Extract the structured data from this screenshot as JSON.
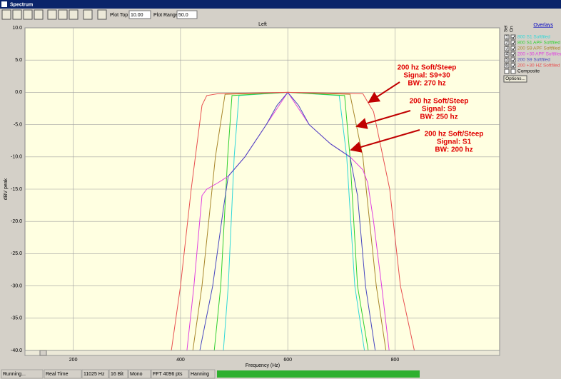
{
  "window_title": "Spectrum",
  "toolbar": {
    "plot_top_label": "Plot Top",
    "plot_top_value": "10.00",
    "plot_range_label": "Plot Range",
    "plot_range_value": "50.0"
  },
  "overlays": {
    "title": "Overlays",
    "sel": "Sel",
    "on": "On",
    "composite": "Composite",
    "options": "Options..."
  },
  "status_bar": [
    "Running...",
    "Real Time",
    "11025 Hz",
    "16 Bit",
    "Mono",
    "FFT 4096 pts",
    "Hanning"
  ],
  "chart_data": {
    "type": "line",
    "title": "Left",
    "x_label": "Frequency (Hz)",
    "y_label": "dBV peak",
    "xlim": [
      110,
      995
    ],
    "xticks": [
      200,
      400,
      600,
      800
    ],
    "ylim": [
      -40,
      10
    ],
    "yticks": [
      {
        "value": 10,
        "label": "10.0"
      },
      {
        "value": 5,
        "label": "5.0"
      },
      {
        "value": 0,
        "label": "0.0"
      },
      {
        "value": -5,
        "label": "-5.0"
      },
      {
        "value": -10,
        "label": "-10.0"
      },
      {
        "value": -15,
        "label": "-15.0"
      },
      {
        "value": -20,
        "label": "-20.0"
      },
      {
        "value": -25,
        "label": "-25.0"
      },
      {
        "value": -30,
        "label": "-30.0"
      },
      {
        "value": -35,
        "label": "-35.0"
      },
      {
        "value": -40,
        "label": "-40.0"
      }
    ],
    "grid": true,
    "series": [
      {
        "id": 1,
        "name": "800 S1 Softfiled",
        "color": "#30d8d8",
        "x": [
          480,
          489,
          500,
          509,
          600,
          696,
          710,
          725,
          743
        ],
        "values": [
          -40,
          -30,
          -10,
          -0.5,
          0,
          -0.5,
          -10,
          -30,
          -40
        ]
      },
      {
        "id": 2,
        "name": "800 S1 APF Softfiled",
        "color": "#30d030",
        "x": [
          463,
          475,
          488,
          496,
          600,
          706,
          716,
          730,
          750
        ],
        "values": [
          -40,
          -30,
          -10,
          -0.5,
          0,
          -0.5,
          -10,
          -30,
          -40
        ]
      },
      {
        "id": 3,
        "name": "200 S9 APF Softfiled",
        "color": "#a8862a",
        "x": [
          423,
          440,
          465,
          483,
          600,
          716,
          740,
          765,
          783
        ],
        "values": [
          -40,
          -30,
          -10,
          -0.3,
          0,
          -0.3,
          -10,
          -30,
          -40
        ]
      },
      {
        "id": 4,
        "name": "200 +30 APF Softfiled",
        "color": "#e040e0",
        "x": [
          412,
          425,
          440,
          449,
          470,
          489,
          520,
          560,
          600,
          640,
          680,
          716,
          740,
          749,
          760,
          775,
          789
        ],
        "values": [
          -40,
          -30,
          -16,
          -15,
          -14,
          -13,
          -10,
          -5,
          0,
          -5,
          -8,
          -10,
          -12,
          -14,
          -20,
          -30,
          -40
        ]
      },
      {
        "id": 5,
        "name": "200 S9 Softfiled",
        "color": "#4848c0",
        "x": [
          436,
          460,
          480,
          489,
          520,
          560,
          580,
          600,
          620,
          640,
          680,
          716,
          730,
          745,
          763
        ],
        "values": [
          -40,
          -30,
          -18,
          -13,
          -10,
          -5,
          -2,
          0,
          -2,
          -5,
          -8,
          -10,
          -16,
          -30,
          -40
        ]
      },
      {
        "id": 6,
        "name": "200 +30 HZ Softfiled",
        "color": "#e85050",
        "x": [
          383,
          400,
          420,
          440,
          449,
          470,
          600,
          740,
          749,
          760,
          790,
          810,
          836
        ],
        "values": [
          -40,
          -30,
          -15,
          -2,
          -0.5,
          -0.2,
          0,
          -0.2,
          -1.5,
          -3,
          -15,
          -30,
          -40
        ]
      }
    ],
    "annotations": [
      [
        "200 hz Soft/Steep",
        "Signal:  S9+30",
        "BW: 270 hz"
      ],
      [
        "200 hz Soft/Steep",
        "Signal:  S9",
        "BW: 250 hz"
      ],
      [
        "200 hz Soft/Steep",
        "Signal:  S1",
        "BW: 200 hz"
      ]
    ]
  }
}
